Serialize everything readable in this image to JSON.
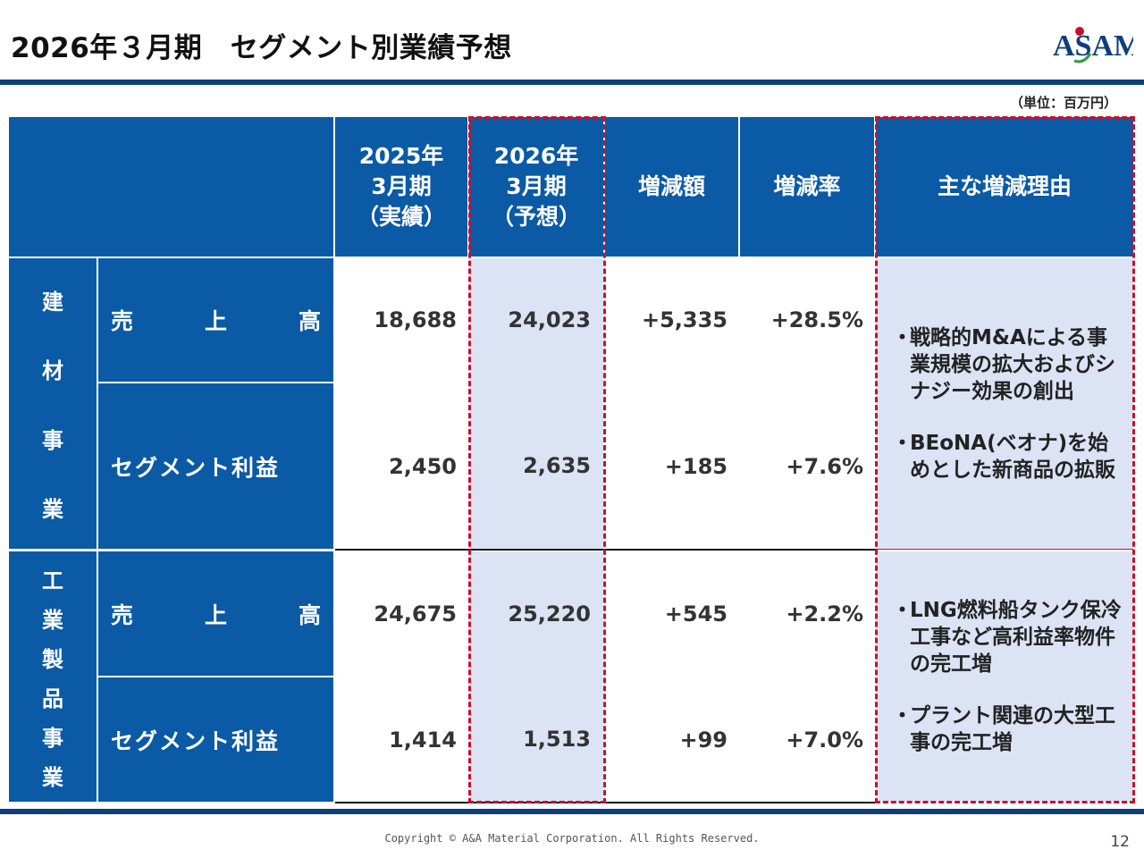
{
  "header": {
    "title": "2026年３月期　セグメント別業績予想",
    "logo_text": "ASAM",
    "unit": "（単位：百万円）"
  },
  "table": {
    "columns": [
      "2025年\n3月期\n（実績）",
      "2026年\n3月期\n（予想）",
      "増減額",
      "増減率",
      "主な増減理由"
    ],
    "col_2025": [
      "2025年",
      "3月期",
      "（実績）"
    ],
    "col_2026": [
      "2026年",
      "3月期",
      "（予想）"
    ],
    "col_diff": "増減額",
    "col_rate": "増減率",
    "col_reason": "主な増減理由",
    "segments": [
      {
        "name_chars": [
          "建",
          "材",
          "事",
          "業"
        ],
        "rows": [
          {
            "label_chars": [
              "売",
              "上",
              "高"
            ],
            "actual_2025": "18,688",
            "forecast_2026": "24,023",
            "diff": "+5,335",
            "rate": "+28.5%"
          },
          {
            "label": "セグメント利益",
            "actual_2025": "2,450",
            "forecast_2026": "2,635",
            "diff": "+185",
            "rate": "+7.6%"
          }
        ],
        "reasons": [
          "戦略的M&Aによる事業規模の拡大およびシナジー効果の創出",
          "BEoNA(ベオナ)を始めとした新商品の拡販"
        ]
      },
      {
        "name_chars": [
          "工",
          "業",
          "製",
          "品",
          "事",
          "業"
        ],
        "rows": [
          {
            "label_chars": [
              "売",
              "上",
              "高"
            ],
            "actual_2025": "24,675",
            "forecast_2026": "25,220",
            "diff": "+545",
            "rate": "+2.2%"
          },
          {
            "label": "セグメント利益",
            "actual_2025": "1,414",
            "forecast_2026": "1,513",
            "diff": "+99",
            "rate": "+7.0%"
          }
        ],
        "reasons": [
          "LNG燃料船タンク保冷工事など高利益率物件の完工増",
          "プラント関連の大型工事の完工増"
        ]
      }
    ],
    "bullet": "・"
  },
  "footer": {
    "copyright": "Copyright © A&A Material Corporation. All Rights Reserved.",
    "page_number": "12"
  },
  "colors": {
    "header_blue": "#0a5aa5",
    "navy_bar": "#0d3f7a",
    "highlight": "#dbe3f4",
    "dash_red": "#c8102e"
  }
}
